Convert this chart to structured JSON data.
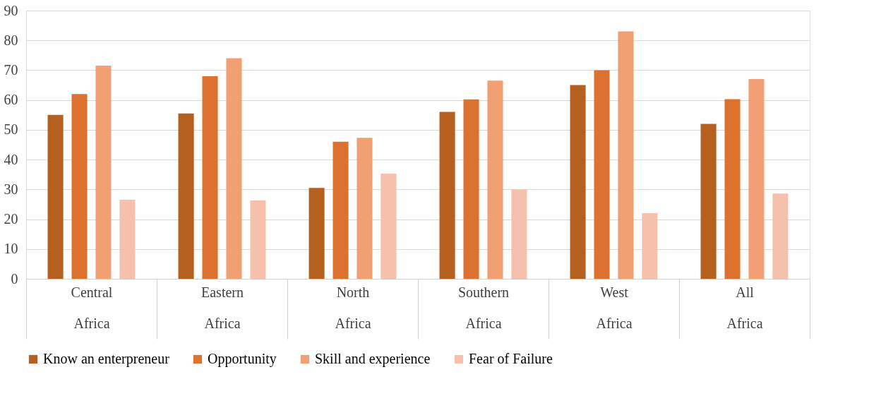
{
  "chart_data": {
    "type": "bar",
    "categories": [
      "Central Africa",
      "Eastern Africa",
      "North Africa",
      "Southern Africa",
      "West Africa",
      "All Africa"
    ],
    "series": [
      {
        "name": "Know an enterpreneur",
        "color": "#b5601f",
        "values": [
          55,
          55.5,
          30.5,
          56,
          65,
          52
        ]
      },
      {
        "name": "Opportunity",
        "color": "#dd7230",
        "values": [
          62,
          68,
          46,
          60.2,
          70,
          60.3
        ]
      },
      {
        "name": "Skill and experience",
        "color": "#f0a073",
        "values": [
          71.5,
          74,
          47.3,
          66.5,
          83,
          67
        ]
      },
      {
        "name": "Fear of Failure",
        "color": "#f5c1ad",
        "values": [
          26.5,
          26.3,
          35.3,
          30,
          22,
          28.6
        ]
      }
    ],
    "ylim": [
      0,
      90
    ],
    "yticks": [
      0,
      10,
      20,
      30,
      40,
      50,
      60,
      70,
      80,
      90
    ],
    "grid": "y",
    "legend": "bottom"
  }
}
